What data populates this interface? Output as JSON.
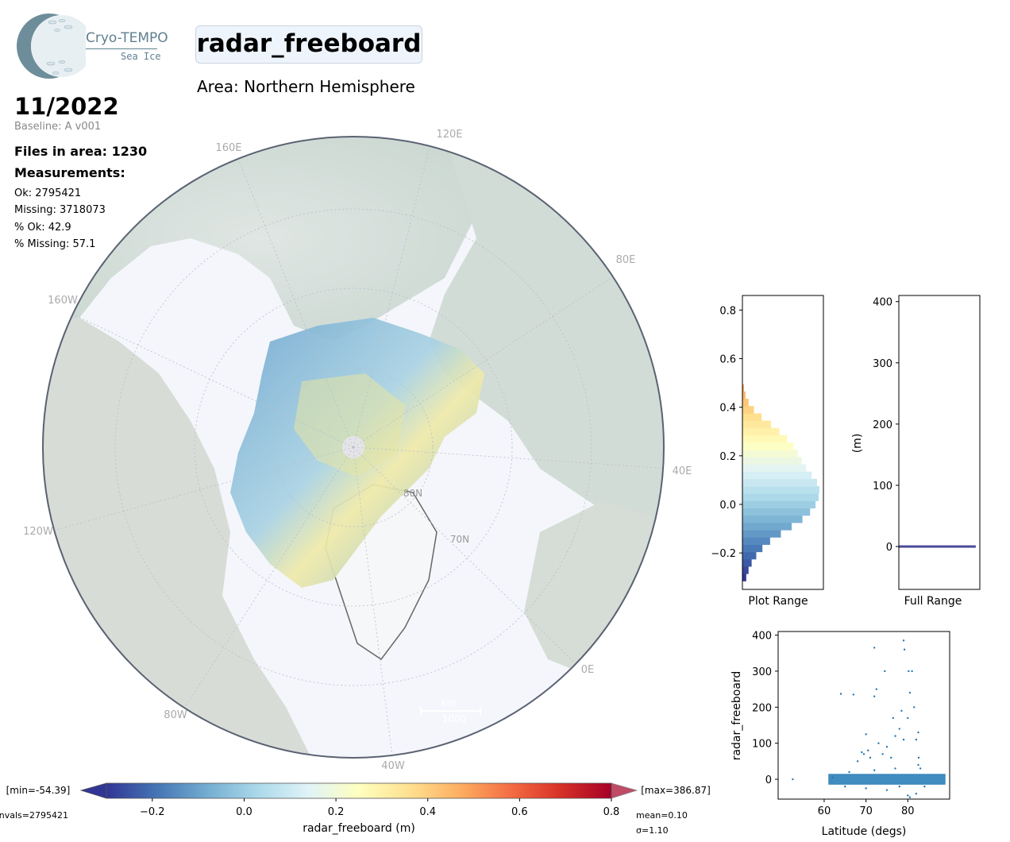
{
  "logo": {
    "line1": "Cryo-TEMPO",
    "line2": "Sea Ice"
  },
  "header": {
    "title": "radar_freeboard",
    "area": "Area: Northern Hemisphere"
  },
  "info": {
    "date": "11/2022",
    "baseline": "Baseline: A v001",
    "files": "Files in area: 1230",
    "measurements_label": "Measurements:",
    "ok": "Ok: 2795421",
    "missing": "Missing: 3718073",
    "pct_ok": "% Ok: 42.9",
    "pct_missing": "% Missing: 57.1"
  },
  "map": {
    "lon_labels": [
      "160E",
      "120E",
      "80E",
      "40E",
      "0E",
      "40W",
      "80W",
      "120W",
      "160W"
    ],
    "lat_labels": [
      "80N",
      "70N"
    ],
    "scale_unit": "km",
    "scale_value": "1000"
  },
  "colorbar": {
    "label": "radar_freeboard (m)",
    "ticks": [
      "−0.2",
      "0.0",
      "0.2",
      "0.4",
      "0.6",
      "0.8"
    ],
    "min_text": "[min=-54.39]",
    "max_text": "[max=386.87]",
    "nvals_text": "nvals=2795421",
    "mean_text": "mean=0.10",
    "sigma_text": "σ=1.10",
    "range": [
      -0.3,
      0.8
    ],
    "colors": [
      "#313695",
      "#4575b4",
      "#74add1",
      "#abd9e9",
      "#e0f3f8",
      "#ffffbf",
      "#fee090",
      "#fdae61",
      "#f46d43",
      "#d73027",
      "#a50026"
    ]
  },
  "chart_data": [
    {
      "type": "histogram",
      "xlabel": "Plot Range",
      "ylim": [
        -0.35,
        0.86
      ],
      "yticks": [
        "−0.2",
        "0.0",
        "0.2",
        "0.4",
        "0.6",
        "0.8"
      ],
      "bins": [
        {
          "y": -0.3,
          "v": 0.05
        },
        {
          "y": -0.27,
          "v": 0.08
        },
        {
          "y": -0.24,
          "v": 0.12
        },
        {
          "y": -0.21,
          "v": 0.18
        },
        {
          "y": -0.18,
          "v": 0.26
        },
        {
          "y": -0.15,
          "v": 0.36
        },
        {
          "y": -0.12,
          "v": 0.5
        },
        {
          "y": -0.09,
          "v": 0.64
        },
        {
          "y": -0.06,
          "v": 0.78
        },
        {
          "y": -0.03,
          "v": 0.88
        },
        {
          "y": 0.0,
          "v": 0.95
        },
        {
          "y": 0.03,
          "v": 0.99
        },
        {
          "y": 0.06,
          "v": 1.0
        },
        {
          "y": 0.09,
          "v": 0.97
        },
        {
          "y": 0.12,
          "v": 0.9
        },
        {
          "y": 0.15,
          "v": 0.83
        },
        {
          "y": 0.18,
          "v": 0.77
        },
        {
          "y": 0.21,
          "v": 0.72
        },
        {
          "y": 0.24,
          "v": 0.66
        },
        {
          "y": 0.27,
          "v": 0.58
        },
        {
          "y": 0.3,
          "v": 0.48
        },
        {
          "y": 0.33,
          "v": 0.37
        },
        {
          "y": 0.36,
          "v": 0.25
        },
        {
          "y": 0.39,
          "v": 0.15
        },
        {
          "y": 0.42,
          "v": 0.08
        },
        {
          "y": 0.45,
          "v": 0.04
        },
        {
          "y": 0.48,
          "v": 0.02
        }
      ]
    },
    {
      "type": "histogram",
      "xlabel": "Full Range",
      "ylabel": "(m)",
      "ylim": [
        -70,
        410
      ],
      "yticks": [
        "0",
        "100",
        "200",
        "300",
        "400"
      ],
      "line_value": 0
    },
    {
      "type": "scatter",
      "xlabel": "Latitude (degs)",
      "ylabel": "radar_freeboard",
      "xlim": [
        49,
        90
      ],
      "ylim": [
        -55,
        410
      ],
      "xticks": [
        "60",
        "70",
        "80"
      ],
      "yticks": [
        "0",
        "100",
        "200",
        "300",
        "400"
      ],
      "points": [
        [
          52.5,
          0
        ],
        [
          62,
          5
        ],
        [
          64,
          237
        ],
        [
          67,
          235
        ],
        [
          68,
          50
        ],
        [
          69,
          75
        ],
        [
          69.5,
          70
        ],
        [
          70,
          125
        ],
        [
          70.5,
          80
        ],
        [
          71,
          60
        ],
        [
          72,
          365
        ],
        [
          72.5,
          250
        ],
        [
          72,
          230
        ],
        [
          73,
          100
        ],
        [
          74,
          70
        ],
        [
          74.5,
          300
        ],
        [
          75,
          90
        ],
        [
          76,
          60
        ],
        [
          76.5,
          170
        ],
        [
          77,
          120
        ],
        [
          78,
          140
        ],
        [
          78.5,
          190
        ],
        [
          79,
          385
        ],
        [
          79.2,
          360
        ],
        [
          79,
          110
        ],
        [
          80,
          170
        ],
        [
          80.5,
          240
        ],
        [
          80.2,
          300
        ],
        [
          81,
          300
        ],
        [
          81.5,
          200
        ],
        [
          82,
          110
        ],
        [
          82.5,
          130
        ],
        [
          82.5,
          40
        ],
        [
          82.6,
          60
        ],
        [
          65,
          -20
        ],
        [
          70,
          -25
        ],
        [
          75,
          -30
        ],
        [
          78,
          -20
        ],
        [
          80,
          -45
        ],
        [
          80.5,
          -50
        ],
        [
          82,
          -40
        ],
        [
          84,
          -20
        ],
        [
          66,
          20
        ],
        [
          72,
          25
        ],
        [
          77,
          30
        ],
        [
          83,
          30
        ]
      ],
      "dense_band": {
        "x_range": [
          61,
          89
        ],
        "y_range": [
          -15,
          15
        ]
      }
    }
  ]
}
